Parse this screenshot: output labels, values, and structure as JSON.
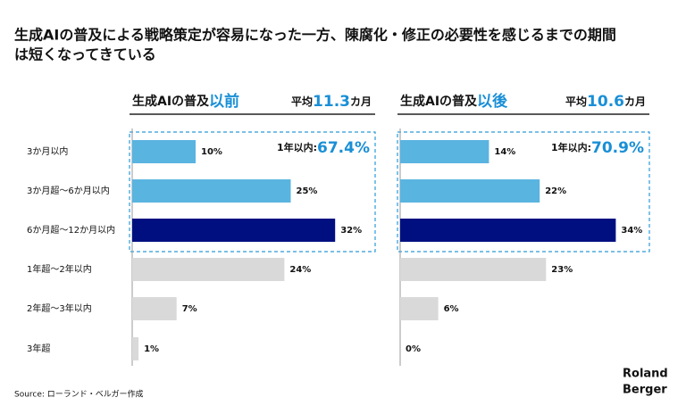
{
  "title": [
    "生成AIの普及による戦略策定が容易になった一方、陳腐化・修正の必要性を感じるまでの期間",
    "は短くなってきている"
  ],
  "source": "Source: ローランド・ベルガー作成",
  "logo": [
    "Roland",
    "Berger"
  ],
  "chart_data": [
    {
      "type": "bar",
      "orientation": "horizontal",
      "header": [
        "生成AIの普及",
        "以前"
      ],
      "average": [
        "平均",
        "11.3",
        "カ月"
      ],
      "annotation": [
        "1年以内:",
        "67.4%"
      ],
      "categories": [
        "3か月以内",
        "3か月超～6か月以内",
        "6か月超～12か月以内",
        "1年超～2年以内",
        "2年超～3年以内",
        "3年超"
      ],
      "values": [
        10,
        25,
        32,
        24,
        7,
        1
      ],
      "value_labels": [
        "10%",
        "25%",
        "32%",
        "24%",
        "7%",
        "1%"
      ],
      "colors": [
        "#5ab4e0",
        "#5ab4e0",
        "#000f80",
        "#d9d9d9",
        "#d9d9d9",
        "#d9d9d9"
      ]
    },
    {
      "type": "bar",
      "orientation": "horizontal",
      "header": [
        "生成AIの普及",
        "以後"
      ],
      "average": [
        "平均",
        "10.6",
        "カ月"
      ],
      "annotation": [
        "1年以内:",
        "70.9%"
      ],
      "values": [
        14,
        22,
        34,
        23,
        6,
        0
      ],
      "value_labels": [
        "14%",
        "22%",
        "34%",
        "23%",
        "6%",
        "0%"
      ],
      "colors": [
        "#5ab4e0",
        "#5ab4e0",
        "#000f80",
        "#d9d9d9",
        "#d9d9d9",
        "#d9d9d9"
      ]
    }
  ]
}
